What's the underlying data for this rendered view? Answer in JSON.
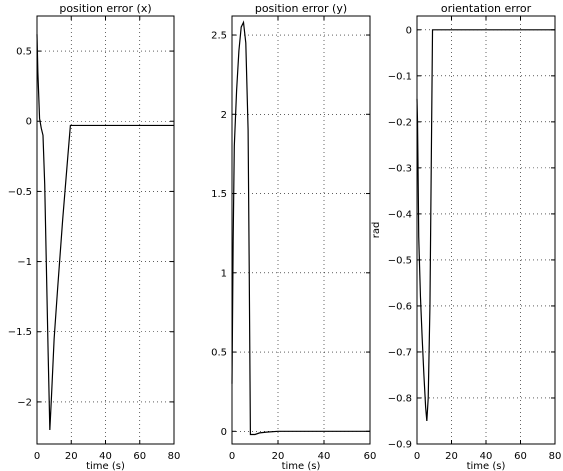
{
  "chart_data": [
    {
      "type": "line",
      "title": "position error (x)",
      "xlabel": "time (s)",
      "ylabel": "",
      "xlim": [
        0,
        80
      ],
      "ylim": [
        -2.3,
        0.75
      ],
      "xticks": [
        0,
        20,
        40,
        60,
        80
      ],
      "xtick_labels": [
        "0",
        "20",
        "40",
        "60",
        "80"
      ],
      "yticks": [
        0.5,
        0,
        -0.5,
        -1,
        -1.5,
        -2
      ],
      "ytick_labels": [
        "0.5",
        "0",
        "−0.5",
        "−1",
        "−1.5",
        "−2"
      ],
      "grid": true,
      "series": [
        {
          "x": [
            0,
            0.5,
            1.5,
            2.5,
            3.5,
            4.5,
            5.5,
            6.5,
            7.5,
            8.5,
            10,
            12,
            15,
            18,
            19.5,
            20,
            80
          ],
          "y": [
            0.62,
            0.35,
            0.02,
            -0.05,
            -0.1,
            -0.45,
            -1.05,
            -1.65,
            -2.2,
            -1.95,
            -1.55,
            -1.2,
            -0.7,
            -0.25,
            -0.03,
            -0.03,
            -0.03
          ]
        }
      ]
    },
    {
      "type": "line",
      "title": "position error (y)",
      "xlabel": "time (s)",
      "ylabel": "",
      "xlim": [
        0,
        60
      ],
      "ylim": [
        -0.08,
        2.62
      ],
      "xticks": [
        0,
        20,
        40,
        60
      ],
      "xtick_labels": [
        "0",
        "20",
        "40",
        "60"
      ],
      "yticks": [
        2.5,
        2,
        1.5,
        1,
        0.5,
        0
      ],
      "ytick_labels": [
        "2.5",
        "2",
        "1.5",
        "1",
        "0.5",
        "0"
      ],
      "grid": true,
      "series": [
        {
          "x": [
            0,
            0.5,
            1,
            2,
            3,
            4,
            5,
            6,
            7,
            7.5,
            8,
            9,
            10,
            12,
            15,
            20,
            60
          ],
          "y": [
            0.3,
            1.2,
            1.8,
            2.15,
            2.4,
            2.55,
            2.58,
            2.45,
            1.9,
            1.0,
            -0.02,
            -0.02,
            -0.02,
            -0.01,
            -0.005,
            0,
            0
          ]
        }
      ]
    },
    {
      "type": "line",
      "title": "orientation error",
      "xlabel": "time (s)",
      "ylabel": "rad",
      "xlim": [
        0,
        80
      ],
      "ylim": [
        -0.9,
        0.03
      ],
      "xticks": [
        0,
        20,
        40,
        60,
        80
      ],
      "xtick_labels": [
        "0",
        "20",
        "40",
        "60",
        "80"
      ],
      "yticks": [
        0,
        -0.1,
        -0.2,
        -0.3,
        -0.4,
        -0.5,
        -0.6,
        -0.7,
        -0.8,
        -0.9
      ],
      "ytick_labels": [
        "0",
        "−0.1",
        "−0.2",
        "−0.3",
        "−0.4",
        "−0.5",
        "−0.6",
        "−0.7",
        "−0.8",
        "−0.9"
      ],
      "grid": true,
      "series": [
        {
          "x": [
            0,
            0.3,
            0.6,
            1,
            2,
            3,
            4,
            5,
            5.7,
            6.5,
            7.5,
            8.5,
            9,
            10,
            20,
            80
          ],
          "y": [
            -0.15,
            -0.2,
            -0.3,
            -0.45,
            -0.58,
            -0.67,
            -0.75,
            -0.82,
            -0.85,
            -0.8,
            -0.6,
            -0.2,
            0,
            0,
            0,
            0
          ]
        }
      ]
    }
  ]
}
